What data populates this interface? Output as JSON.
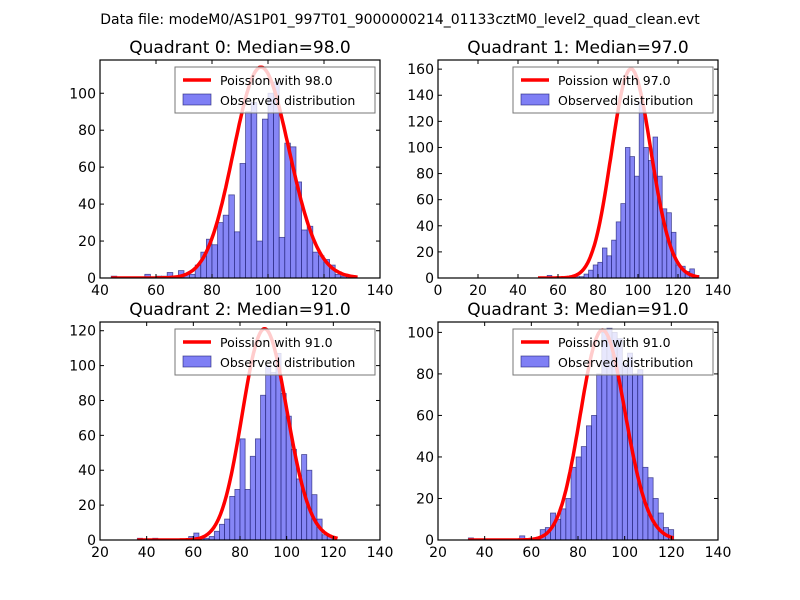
{
  "suptitle": "Data file: modeM0/AS1P01_997T01_9000000214_01133cztM0_level2_quad_clean.evt",
  "colors": {
    "bar_fill": "#7f7ff5",
    "bar_edge": "#1a1a6e",
    "curve": "#ff0000"
  },
  "chart_data": [
    {
      "type": "bar",
      "title": "Quadrant 0: Median=98.0",
      "xlim": [
        40,
        140
      ],
      "ylim": [
        0,
        118
      ],
      "xticks": [
        40,
        60,
        80,
        100,
        120,
        140
      ],
      "yticks": [
        0,
        20,
        40,
        60,
        80,
        100
      ],
      "legend": [
        "Poission with 98.0",
        "Observed distribution"
      ],
      "legend_position": "upper-right",
      "bin_width": 2,
      "bins_start": [
        44,
        46,
        48,
        50,
        52,
        54,
        56,
        58,
        60,
        62,
        64,
        66,
        68,
        70,
        72,
        74,
        76,
        78,
        80,
        82,
        84,
        86,
        88,
        90,
        92,
        94,
        96,
        98,
        100,
        102,
        104,
        106,
        108,
        110,
        112,
        114,
        116,
        118,
        120,
        122,
        124,
        126,
        128,
        130
      ],
      "bins_count": [
        1,
        0,
        0,
        0,
        0,
        0,
        2,
        0,
        1,
        1,
        3,
        1,
        4,
        2,
        2,
        7,
        14,
        21,
        18,
        30,
        34,
        45,
        25,
        62,
        90,
        95,
        20,
        86,
        100,
        106,
        22,
        73,
        71,
        52,
        26,
        28,
        14,
        12,
        10,
        7,
        2,
        1,
        1,
        0
      ],
      "poisson": {
        "mean": 98.0,
        "peak": 114
      }
    },
    {
      "type": "bar",
      "title": "Quadrant 1: Median=97.0",
      "xlim": [
        0,
        140
      ],
      "ylim": [
        0,
        167
      ],
      "xticks": [
        0,
        20,
        40,
        60,
        80,
        100,
        120,
        140
      ],
      "yticks": [
        0,
        20,
        40,
        60,
        80,
        100,
        120,
        140,
        160
      ],
      "legend": [
        "Poission with 97.0",
        "Observed distribution"
      ],
      "legend_position": "upper-right",
      "bin_width": 2.3,
      "bins_start": [
        50,
        52.3,
        54.6,
        56.9,
        59.2,
        61.5,
        63.8,
        66.1,
        68.4,
        70.7,
        73,
        75.3,
        77.6,
        79.9,
        82.2,
        84.5,
        86.8,
        89.1,
        91.4,
        93.7,
        96,
        98.3,
        100.6,
        102.9,
        105.2,
        107.5,
        109.8,
        112.1,
        114.4,
        116.7,
        119,
        121.3,
        123.6,
        125.9,
        128.2
      ],
      "bins_count": [
        0,
        0,
        2,
        0,
        0,
        0,
        0,
        0,
        1,
        1,
        3,
        6,
        10,
        12,
        23,
        17,
        29,
        43,
        57,
        100,
        93,
        78,
        135,
        100,
        90,
        108,
        78,
        53,
        50,
        35,
        10,
        9,
        5,
        7,
        2
      ],
      "poisson": {
        "mean": 97.0,
        "peak": 160
      }
    },
    {
      "type": "bar",
      "title": "Quadrant 2: Median=91.0",
      "xlim": [
        20,
        140
      ],
      "ylim": [
        0,
        125
      ],
      "xticks": [
        20,
        40,
        60,
        80,
        100,
        120,
        140
      ],
      "yticks": [
        0,
        20,
        40,
        60,
        80,
        100,
        120
      ],
      "legend": [
        "Poission with 91.0",
        "Observed distribution"
      ],
      "legend_position": "upper-right",
      "bin_width": 2.2,
      "bins_start": [
        36,
        38.2,
        40.4,
        42.6,
        44.8,
        47,
        49.2,
        51.4,
        53.6,
        55.8,
        58,
        60.2,
        62.4,
        64.6,
        66.8,
        69,
        71.2,
        73.4,
        75.6,
        77.8,
        80,
        82.2,
        84.4,
        86.6,
        88.8,
        91,
        93.2,
        95.4,
        97.6,
        99.8,
        102,
        104.2,
        106.4,
        108.6,
        110.8,
        113,
        115.2,
        117.4,
        119.6
      ],
      "bins_count": [
        1,
        0,
        0,
        1,
        0,
        0,
        0,
        0,
        0,
        0,
        2,
        4,
        1,
        1,
        2,
        5,
        9,
        12,
        25,
        29,
        58,
        29,
        48,
        58,
        83,
        100,
        96,
        107,
        84,
        71,
        52,
        35,
        49,
        40,
        26,
        12,
        3,
        2,
        0
      ],
      "poisson": {
        "mean": 91.0,
        "peak": 121
      }
    },
    {
      "type": "bar",
      "title": "Quadrant 3: Median=91.0",
      "xlim": [
        20,
        140
      ],
      "ylim": [
        0,
        105
      ],
      "xticks": [
        20,
        40,
        60,
        80,
        100,
        120,
        140
      ],
      "yticks": [
        0,
        20,
        40,
        60,
        80,
        100
      ],
      "legend": [
        "Poission with 91.0",
        "Observed distribution"
      ],
      "legend_position": "upper-right",
      "bin_width": 2.2,
      "bins_start": [
        33,
        35.2,
        37.4,
        39.6,
        41.8,
        44,
        46.2,
        48.4,
        50.6,
        52.8,
        55,
        57.2,
        59.4,
        61.6,
        63.8,
        66,
        68.2,
        70.4,
        72.6,
        74.8,
        77,
        79.2,
        81.4,
        83.6,
        85.8,
        88,
        90.2,
        92.4,
        94.6,
        96.8,
        99,
        101.2,
        103.4,
        105.6,
        107.8,
        110,
        112.2,
        114.4,
        116.6,
        118.8
      ],
      "bins_count": [
        1,
        0,
        0,
        0,
        0,
        0,
        0,
        0,
        0,
        0,
        2,
        0,
        0,
        1,
        5,
        6,
        13,
        10,
        15,
        20,
        35,
        40,
        45,
        55,
        60,
        80,
        100,
        102,
        100,
        97,
        85,
        90,
        80,
        82,
        35,
        30,
        20,
        13,
        6,
        5
      ],
      "poisson": {
        "mean": 91.0,
        "peak": 101
      }
    }
  ]
}
